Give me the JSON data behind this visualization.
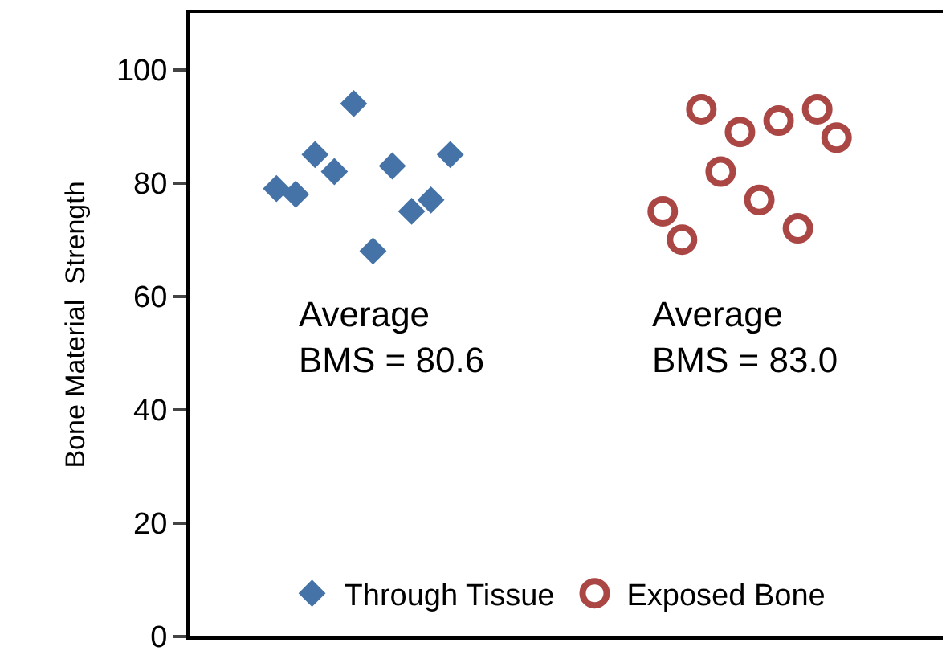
{
  "chart_data": {
    "type": "scatter",
    "ylabel": "Bone Material  Strength",
    "categories": [
      null,
      null,
      null,
      null,
      null,
      null,
      null,
      null,
      null,
      null,
      null,
      null,
      null,
      null,
      null,
      null,
      null,
      null,
      null,
      null,
      null,
      null,
      null,
      null,
      null,
      null,
      null,
      null,
      null,
      null,
      null,
      null,
      null,
      null,
      null,
      null,
      null,
      null,
      null
    ],
    "ylim": [
      0,
      110
    ],
    "yticks": [
      0,
      20,
      40,
      60,
      80,
      100
    ],
    "legend": "bottom",
    "annotations": [
      "Average\nBMS = 80.6",
      "Average\nBMS = 83.0"
    ],
    "series": [
      {
        "name": "Through Tissue",
        "color": "#4572a7",
        "marker": "diamond",
        "values": [
          null,
          null,
          null,
          null,
          79,
          78,
          85,
          82,
          94,
          68,
          83,
          75,
          77,
          85,
          null,
          null,
          null,
          null,
          null,
          null,
          null,
          null,
          null,
          null,
          null,
          null,
          null,
          null,
          null,
          null,
          null,
          null,
          null,
          null,
          null,
          null,
          null,
          null,
          null
        ]
      },
      {
        "name": "Exposed Bone",
        "color": "#aa4643",
        "marker": "circle-open",
        "values": [
          null,
          null,
          null,
          null,
          null,
          null,
          null,
          null,
          null,
          null,
          null,
          null,
          null,
          null,
          null,
          null,
          null,
          null,
          null,
          null,
          null,
          null,
          null,
          null,
          75,
          70,
          93,
          82,
          89,
          77,
          91,
          72,
          93,
          88,
          null,
          null,
          null,
          null,
          null
        ]
      }
    ]
  }
}
